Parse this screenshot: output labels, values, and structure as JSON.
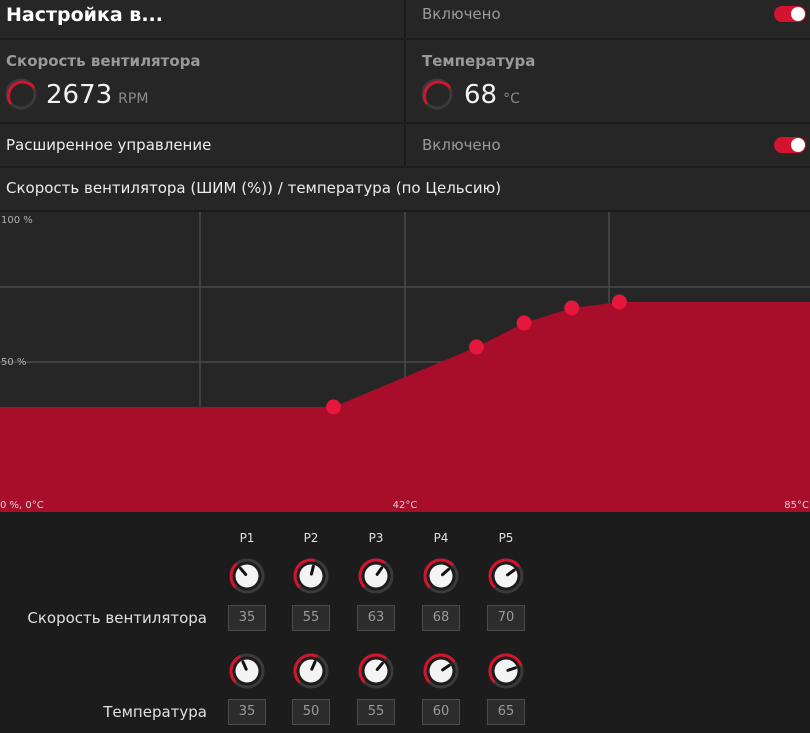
{
  "header": {
    "title": "Настройка в...",
    "status": "Включено",
    "toggle_on": true
  },
  "metrics": {
    "fan_speed": {
      "title": "Скорость вентилятора",
      "value": "2673",
      "unit": "RPM"
    },
    "temperature": {
      "title": "Температура",
      "value": "68",
      "unit": "°C"
    }
  },
  "advanced": {
    "label": "Расширенное управление",
    "status": "Включено",
    "toggle_on": true
  },
  "chart_title": "Скорость вентилятора (ШИМ (%)) / температура (по Цельсию)",
  "chart_data": {
    "type": "area",
    "x_unit": "°C",
    "y_unit": "%",
    "xlim": [
      0,
      85
    ],
    "ylim": [
      0,
      100
    ],
    "grid": true,
    "tick_labels": {
      "y_top": "100 %",
      "y_mid": "50 %",
      "origin": "0 %, 0°C",
      "x_mid": "42°C",
      "x_max": "85°C"
    },
    "points": [
      {
        "name": "P1",
        "x": 35,
        "y": 35
      },
      {
        "name": "P2",
        "x": 50,
        "y": 55
      },
      {
        "name": "P3",
        "x": 55,
        "y": 63
      },
      {
        "name": "P4",
        "x": 60,
        "y": 68
      },
      {
        "name": "P5",
        "x": 65,
        "y": 70
      }
    ],
    "fill_color": "#a80d2a",
    "point_color": "#e5173c"
  },
  "controls": {
    "point_labels": [
      "P1",
      "P2",
      "P3",
      "P4",
      "P5"
    ],
    "fan_speed_label": "Скорость вентилятора",
    "fan_speed_values": [
      "35",
      "55",
      "63",
      "68",
      "70"
    ],
    "temperature_label": "Температура",
    "temperature_values": [
      "35",
      "50",
      "55",
      "60",
      "65"
    ]
  },
  "colors": {
    "accent": "#d4142f"
  }
}
